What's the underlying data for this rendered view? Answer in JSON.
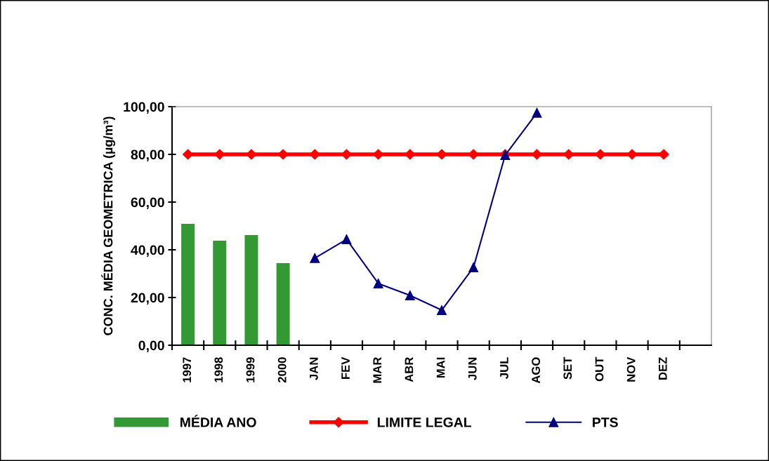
{
  "chart_data": {
    "type": "bar",
    "ylabel": "CONC. MÉDIA GEOMETRICA (µg/m³)",
    "categories": [
      "1997",
      "1998",
      "1999",
      "2000",
      "JAN",
      "FEV",
      "MAR",
      "ABR",
      "MAI",
      "JUN",
      "JUL",
      "AGO",
      "SET",
      "OUT",
      "NOV",
      "DEZ",
      null
    ],
    "series": [
      {
        "name": "MÉDIA ANO",
        "color": "#339933",
        "values": [
          50.9,
          43.8,
          46.2,
          34.4,
          null,
          null,
          null,
          null,
          null,
          null,
          null,
          null,
          null,
          null,
          null,
          null,
          null
        ]
      },
      {
        "name": "LIMITE LEGAL",
        "type": "line",
        "color": "#ff0000",
        "marker": "diamond",
        "values": [
          80,
          80,
          80,
          80,
          80,
          80,
          80,
          80,
          80,
          80,
          80,
          80,
          80,
          80,
          80,
          80,
          null
        ]
      },
      {
        "name": "PTS",
        "type": "line",
        "color": "#000080",
        "marker": "triangle",
        "values": [
          null,
          null,
          null,
          null,
          36.5,
          44.4,
          25.9,
          20.9,
          14.7,
          32.6,
          79.7,
          97.4,
          null,
          null,
          null,
          null,
          null
        ]
      }
    ],
    "ylim": [
      0,
      100
    ],
    "yticks": [
      {
        "value": 0,
        "label": "0,00"
      },
      {
        "value": 20,
        "label": "20,00"
      },
      {
        "value": 40,
        "label": "40,00"
      },
      {
        "value": 60,
        "label": "60,00"
      },
      {
        "value": 80,
        "label": "80,00"
      },
      {
        "value": 100,
        "label": "100,00"
      }
    ],
    "grid": false,
    "legend": "bottom"
  }
}
